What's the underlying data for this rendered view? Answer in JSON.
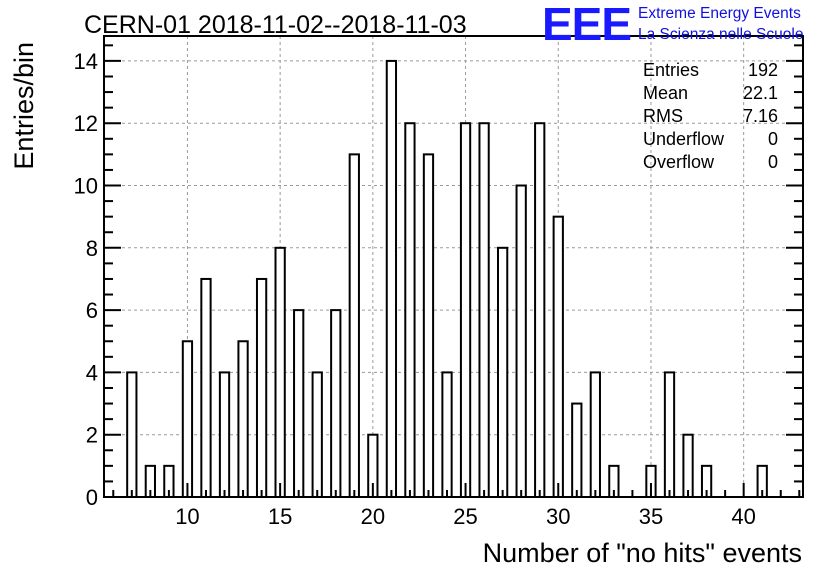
{
  "chart_data": {
    "type": "bar",
    "title": "CERN-01 2018-11-02--2018-11-03",
    "xlabel": "Number of \"no hits\" events",
    "ylabel": "Entries/bin",
    "xlim": [
      5.5,
      43.2
    ],
    "ylim": [
      0,
      14.8
    ],
    "grid": true,
    "x_ticks": [
      10,
      15,
      20,
      25,
      30,
      35,
      40
    ],
    "y_ticks": [
      0,
      2,
      4,
      6,
      8,
      10,
      12,
      14
    ],
    "bin_width": 0.5,
    "bins": [
      {
        "x": 7,
        "value": 4
      },
      {
        "x": 8,
        "value": 1
      },
      {
        "x": 9,
        "value": 1
      },
      {
        "x": 10,
        "value": 5
      },
      {
        "x": 11,
        "value": 7
      },
      {
        "x": 12,
        "value": 4
      },
      {
        "x": 13,
        "value": 5
      },
      {
        "x": 14,
        "value": 7
      },
      {
        "x": 15,
        "value": 8
      },
      {
        "x": 16,
        "value": 6
      },
      {
        "x": 17,
        "value": 4
      },
      {
        "x": 18,
        "value": 6
      },
      {
        "x": 19,
        "value": 11
      },
      {
        "x": 20,
        "value": 2
      },
      {
        "x": 21,
        "value": 14
      },
      {
        "x": 22,
        "value": 12
      },
      {
        "x": 23,
        "value": 11
      },
      {
        "x": 24,
        "value": 4
      },
      {
        "x": 25,
        "value": 12
      },
      {
        "x": 26,
        "value": 12
      },
      {
        "x": 27,
        "value": 8
      },
      {
        "x": 28,
        "value": 10
      },
      {
        "x": 29,
        "value": 12
      },
      {
        "x": 30,
        "value": 9
      },
      {
        "x": 31,
        "value": 3
      },
      {
        "x": 32,
        "value": 4
      },
      {
        "x": 33,
        "value": 1
      },
      {
        "x": 35,
        "value": 1
      },
      {
        "x": 36,
        "value": 4
      },
      {
        "x": 37,
        "value": 2
      },
      {
        "x": 38,
        "value": 1
      },
      {
        "x": 41,
        "value": 1
      }
    ],
    "stats": [
      {
        "label": "Entries",
        "value": "192"
      },
      {
        "label": "Mean",
        "value": "22.1"
      },
      {
        "label": "RMS",
        "value": "7.16"
      },
      {
        "label": "Underflow",
        "value": "0"
      },
      {
        "label": "Overflow",
        "value": "0"
      }
    ]
  },
  "logo": {
    "mark": "EEE",
    "line1": "Extreme Energy Events",
    "line2": "La Scienza nelle Scuole",
    "color": "#1010e0"
  },
  "colors": {
    "bar_fill": "#ffffff",
    "bar_stroke": "#000000",
    "grid": "#9a9a9a"
  }
}
